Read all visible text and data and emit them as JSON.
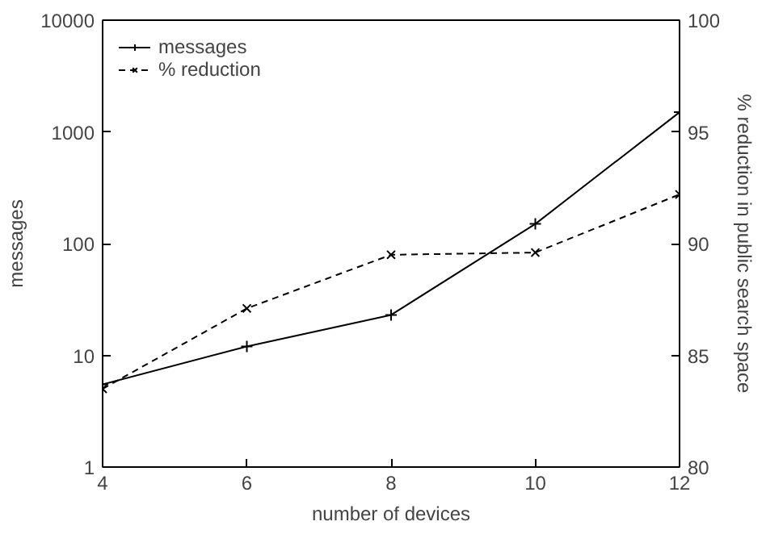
{
  "chart_data": {
    "type": "line",
    "xlabel": "number of devices",
    "ylabel": "messages",
    "y2label": "% reduction in public search space",
    "x": [
      4,
      6,
      8,
      10,
      12
    ],
    "xlim": [
      4,
      12
    ],
    "xticks": [
      4,
      6,
      8,
      10,
      12
    ],
    "ylim": [
      1,
      10000
    ],
    "yticks": [
      1,
      10,
      100,
      1000,
      10000
    ],
    "log": "y",
    "y2lim": [
      80,
      100
    ],
    "y2ticks": [
      80,
      85,
      90,
      95,
      100
    ],
    "series": [
      {
        "name": "messages",
        "color": "#000000",
        "values": [
          5.5,
          12,
          23,
          150,
          1500
        ],
        "marker": "cross",
        "line_style": "solid"
      },
      {
        "name": "% reduction",
        "color": "#000000",
        "values": [
          83.5,
          87.1,
          89.5,
          89.6,
          92.2
        ],
        "axis": "y2",
        "marker": "x",
        "line_style": "dashed"
      }
    ],
    "legend": "top left",
    "grid": false
  }
}
